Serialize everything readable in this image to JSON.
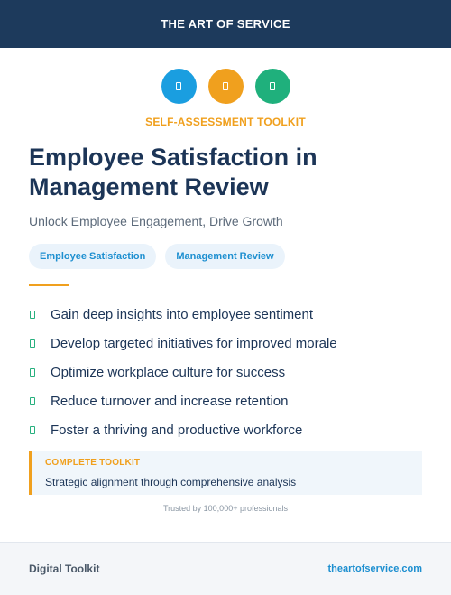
{
  "header": {
    "brand": "THE ART OF SERVICE",
    "background": "#1d3a5c"
  },
  "icons": [
    {
      "name": "blue-icon",
      "color": "#1a9ee0"
    },
    {
      "name": "orange-icon",
      "color": "#f0a01e"
    },
    {
      "name": "green-icon",
      "color": "#1fb07c"
    }
  ],
  "hero": {
    "kicker": "SELF-ASSESSMENT TOOLKIT",
    "title": "Employee Satisfaction in Management Review",
    "subtitle": "Unlock Employee Engagement, Drive Growth"
  },
  "tags": [
    "Employee Satisfaction",
    "Management Review"
  ],
  "benefits": [
    "Gain deep insights into employee sentiment",
    "Develop targeted initiatives for improved morale",
    "Optimize workplace culture for success",
    "Reduce turnover and increase retention",
    "Foster a thriving and productive workforce"
  ],
  "callout": {
    "label": "COMPLETE TOOLKIT",
    "text": "Strategic alignment through comprehensive analysis"
  },
  "trusted": "Trusted by 100,000+ professionals",
  "footer": {
    "left": "Digital Toolkit",
    "right": "theartofservice.com"
  }
}
